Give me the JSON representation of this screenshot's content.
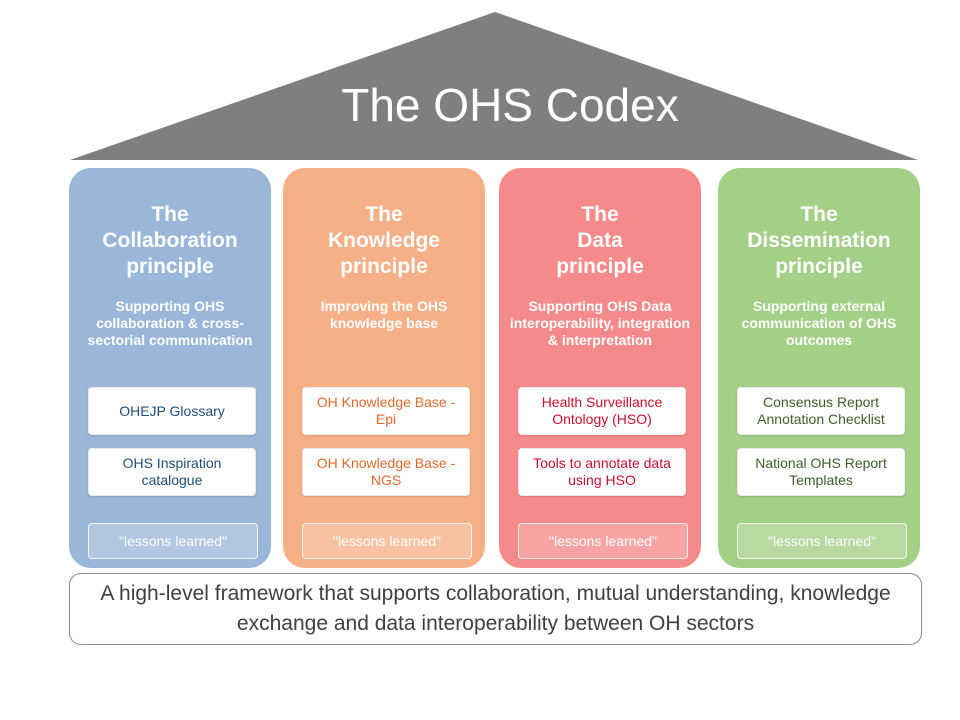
{
  "title": "The OHS Codex",
  "colors": {
    "roof": "#7f7f7f",
    "collaboration": "#9ab7d9",
    "knowledge": "#f6b087",
    "data": "#f58a8a",
    "dissemination": "#a4cf86",
    "collaboration_text": "#1f4e79",
    "knowledge_text": "#e06a2c",
    "data_text": "#c8102e",
    "dissemination_text": "#3d5f2a"
  },
  "pillars": [
    {
      "title": "The\nCollaboration\nprinciple",
      "description": "Supporting OHS collaboration & cross-sectorial communication",
      "items": [
        "OHEJP Glossary",
        "OHS Inspiration catalogue"
      ],
      "lessons": "\"lessons learned\""
    },
    {
      "title": "The\nKnowledge\nprinciple",
      "description": "Improving the OHS knowledge base",
      "items": [
        "OH Knowledge Base - Epi",
        "OH Knowledge Base - NGS"
      ],
      "lessons": "\"lessons learned\""
    },
    {
      "title": "The\nData\nprinciple",
      "description": "Supporting OHS Data interoperability, integration & interpretation",
      "items": [
        "Health Surveillance Ontology (HSO)",
        "Tools to annotate data using HSO"
      ],
      "lessons": "\"lessons learned\""
    },
    {
      "title": "The\nDissemination\nprinciple",
      "description": "Supporting external communication of OHS outcomes",
      "items": [
        "Consensus Report Annotation Checklist",
        "National OHS Report Templates"
      ],
      "lessons": "\"lessons learned\""
    }
  ],
  "footer": "A high-level framework that supports collaboration, mutual understanding, knowledge exchange and data interoperability between OH sectors"
}
